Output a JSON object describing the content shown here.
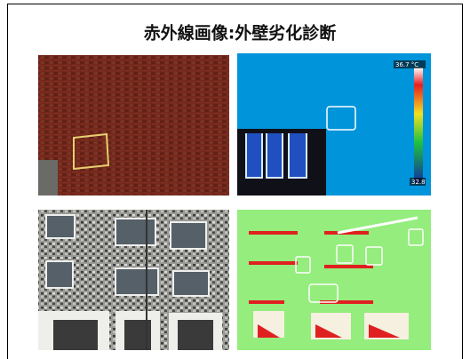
{
  "header": {
    "title": "赤外線画像:外壁劣化診断"
  },
  "thermal_scale": {
    "max_label": "36.7 °C",
    "min_label": "32.8"
  }
}
